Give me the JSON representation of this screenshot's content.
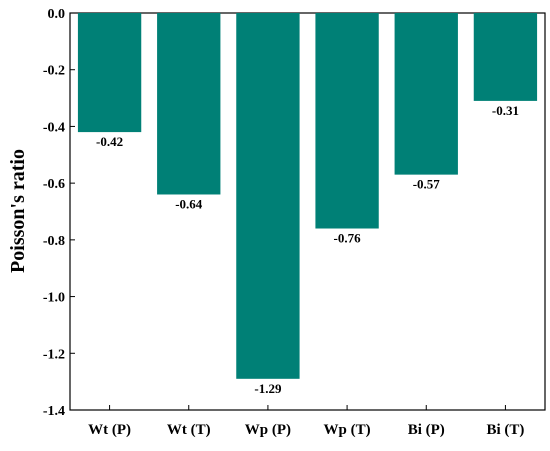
{
  "chart_data": {
    "type": "bar",
    "title": "",
    "xlabel": "",
    "ylabel": "Poisson's ratio",
    "categories": [
      "Wt (P)",
      "Wt (T)",
      "Wp (P)",
      "Wp (T)",
      "Bi (P)",
      "Bi (T)"
    ],
    "values": [
      -0.42,
      -0.64,
      -1.29,
      -0.76,
      -0.57,
      -0.31
    ],
    "data_labels": [
      "-0.42",
      "-0.64",
      "-1.29",
      "-0.76",
      "-0.57",
      "-0.31"
    ],
    "ylim": [
      -1.4,
      0.0
    ],
    "yticks": [
      0.0,
      -0.2,
      -0.4,
      -0.6,
      -0.8,
      -1.0,
      -1.2,
      -1.4
    ],
    "ytick_labels": [
      "0.0",
      "-0.2",
      "-0.4",
      "-0.6",
      "-0.8",
      "-1.0",
      "-1.2",
      "-1.4"
    ],
    "grid": false,
    "legend": "none",
    "bar_color": "#008076"
  }
}
